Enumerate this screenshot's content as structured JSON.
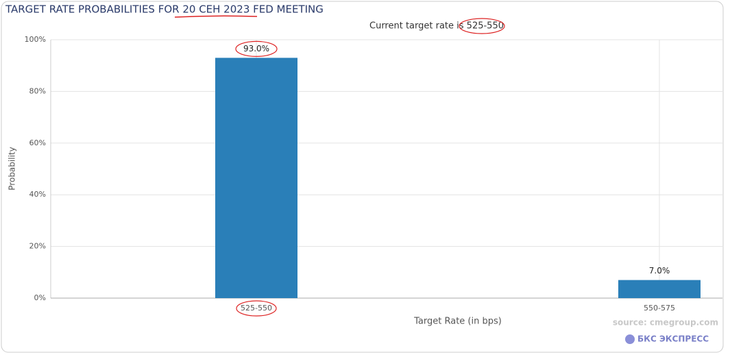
{
  "chart_data": {
    "type": "bar",
    "title": "TARGET RATE PROBABILITIES FOR 20 СЕН 2023 FED MEETING",
    "subtitle": "Current target rate is 525-550",
    "y_label": "Probability",
    "x_label": "Target Rate (in bps)",
    "source": "source: cmegroup.com",
    "brand": "БКС ЭКСПРЕСС",
    "categories": [
      "525-550",
      "550-575"
    ],
    "values": [
      93.0,
      7.0
    ],
    "value_labels": [
      "93.0%",
      "7.0%"
    ],
    "color": "#2a7fb8",
    "ylim": [
      0,
      100
    ],
    "yticks": [
      {
        "value": 0,
        "label": "0%"
      },
      {
        "value": 20,
        "label": "20%"
      },
      {
        "value": 40,
        "label": "40%"
      },
      {
        "value": 60,
        "label": "60%"
      },
      {
        "value": 80,
        "label": "80%"
      },
      {
        "value": 100,
        "label": "100%"
      }
    ],
    "grid": true
  }
}
